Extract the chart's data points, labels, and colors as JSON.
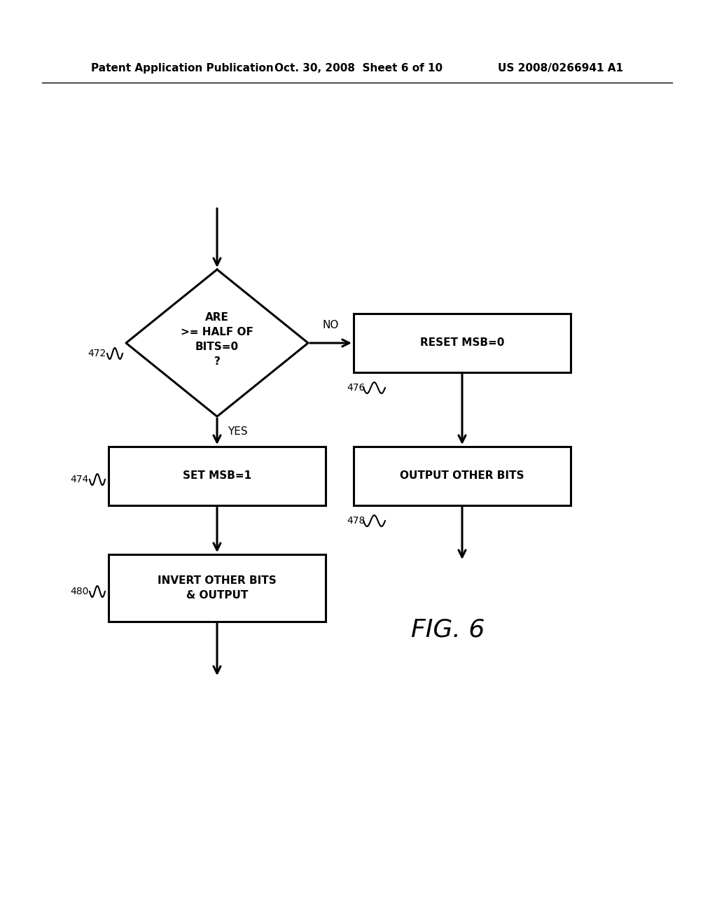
{
  "header_left": "Patent Application Publication",
  "header_center": "Oct. 30, 2008  Sheet 6 of 10",
  "header_right": "US 2008/0266941 A1",
  "figure_label": "FIG. 6",
  "diamond_text": "ARE\n>= HALF OF\nBITS=0\n?",
  "diamond_label": "472",
  "box1_text": "SET MSB=1",
  "box1_label": "474",
  "box2_text": "INVERT OTHER BITS\n& OUTPUT",
  "box2_label": "480",
  "box3_text": "RESET MSB=0",
  "box3_label": "476",
  "box4_text": "OUTPUT OTHER BITS",
  "box4_label": "478",
  "arrow_no_label": "NO",
  "arrow_yes_label": "YES",
  "bg_color": "#ffffff",
  "text_color": "#000000",
  "line_color": "#000000"
}
